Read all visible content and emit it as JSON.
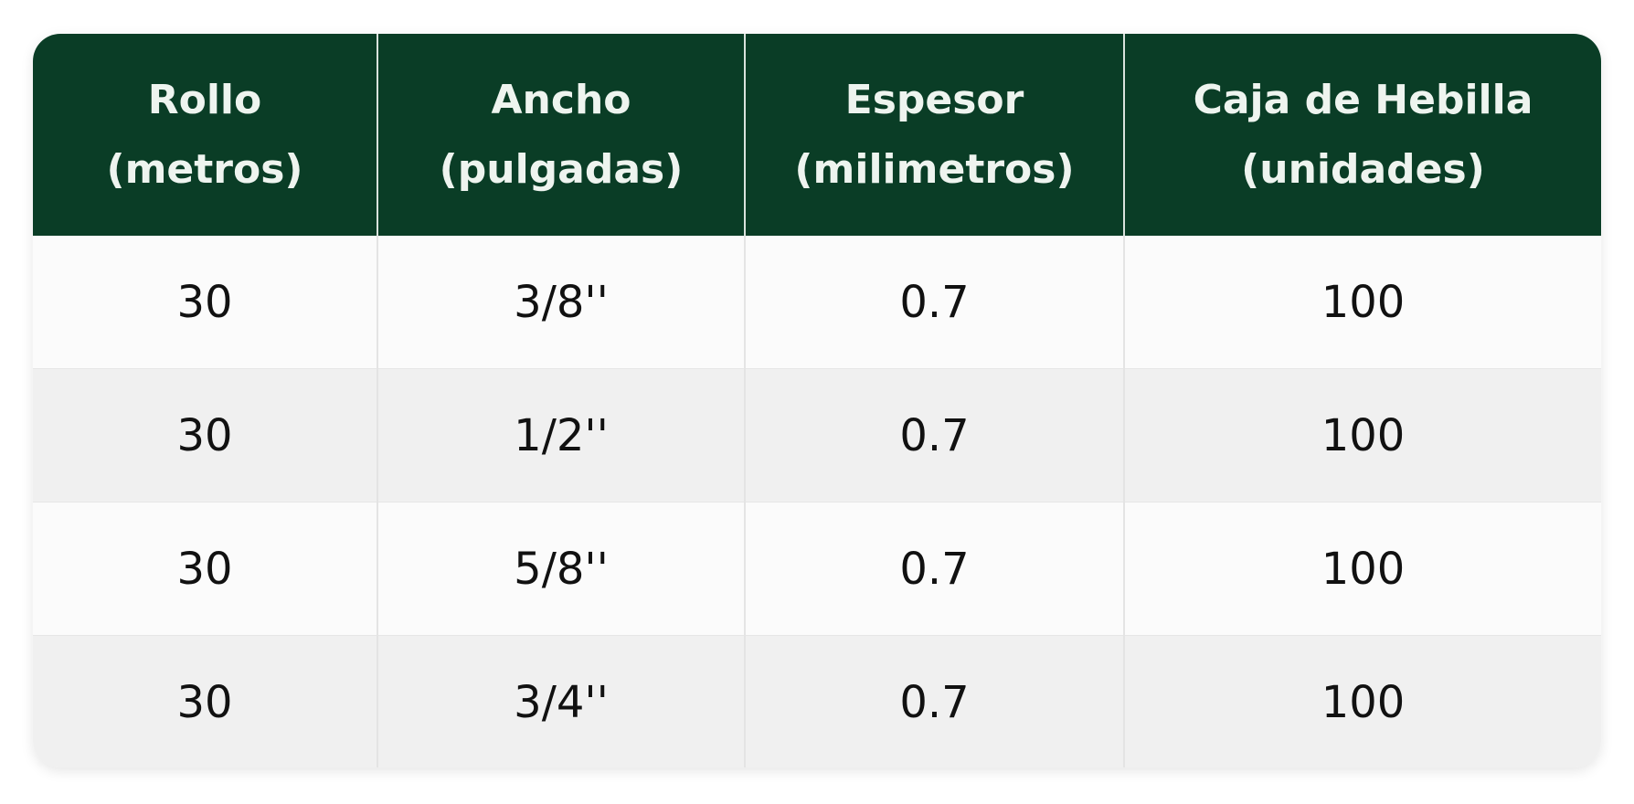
{
  "table": {
    "header": [
      [
        "Rollo",
        "(metros)"
      ],
      [
        "Ancho",
        "(pulgadas)"
      ],
      [
        "Espesor",
        "(milimetros)"
      ],
      [
        "Caja de Hebilla",
        "(unidades)"
      ]
    ],
    "rows": [
      [
        "30",
        "3/8''",
        "0.7",
        "100"
      ],
      [
        "30",
        "1/2''",
        "0.7",
        "100"
      ],
      [
        "30",
        "5/8''",
        "0.7",
        "100"
      ],
      [
        "30",
        "3/4''",
        "0.7",
        "100"
      ]
    ]
  }
}
